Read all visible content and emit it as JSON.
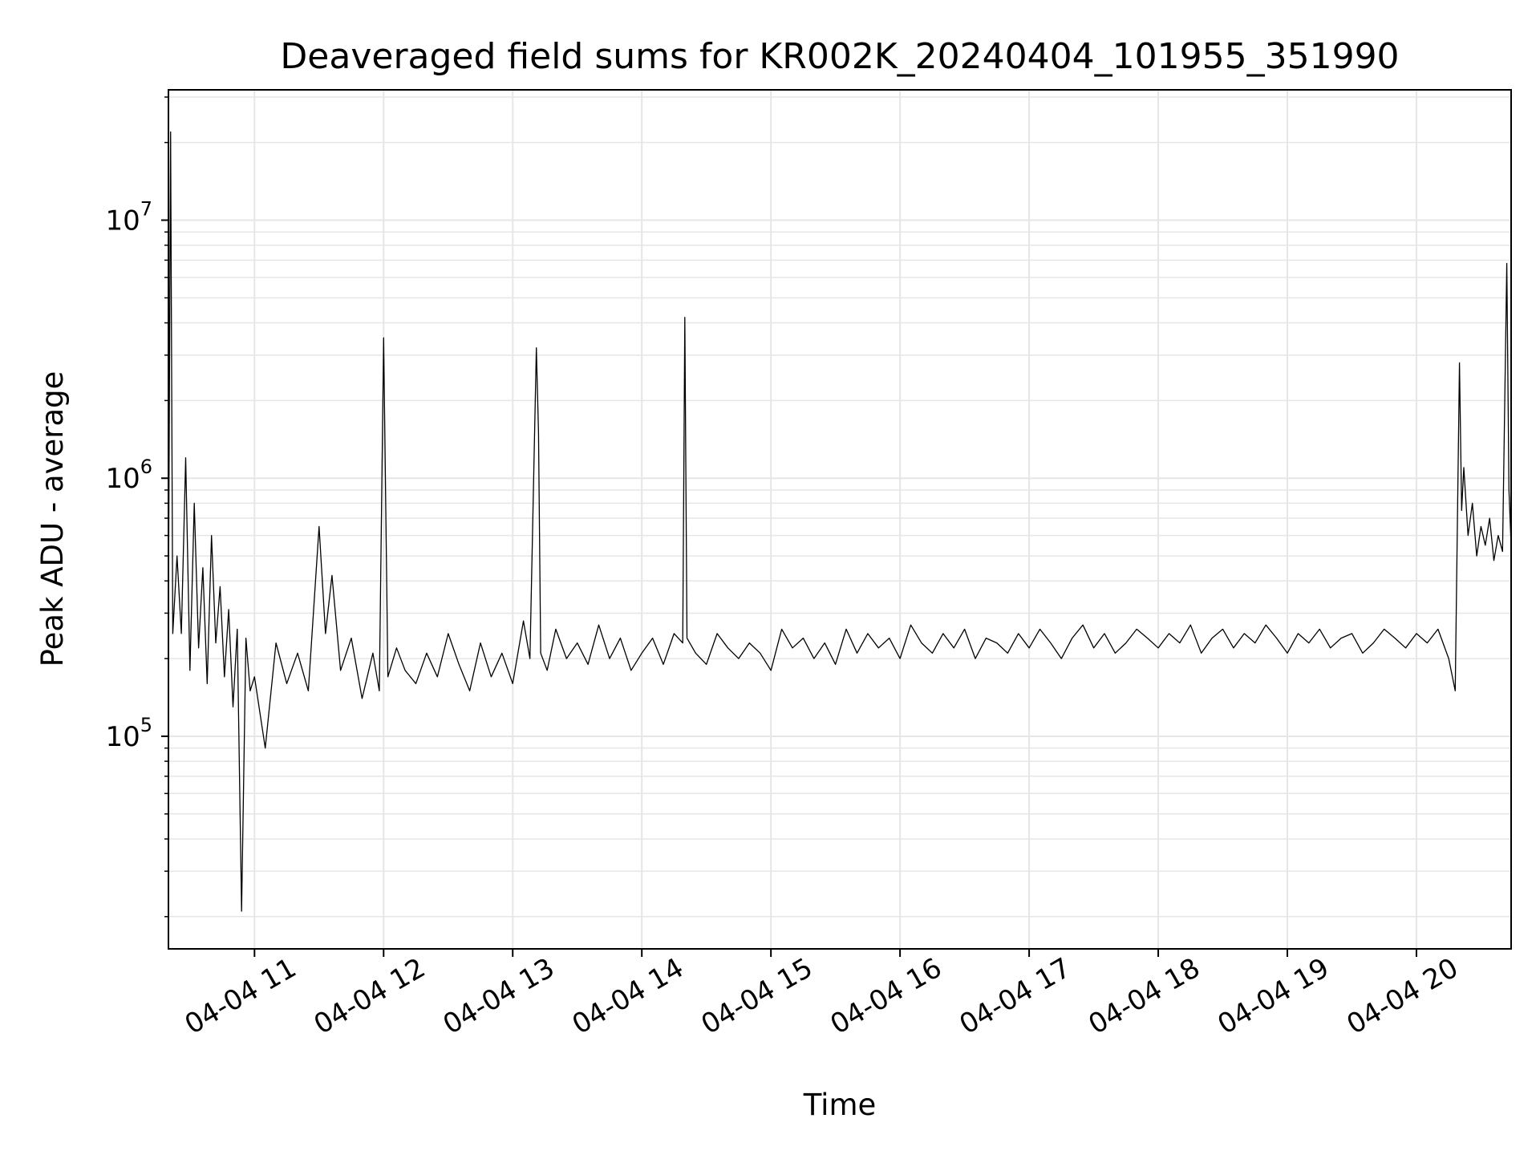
{
  "chart_data": {
    "type": "line",
    "title": "Deaveraged field sums for KR002K_20240404_101955_351990",
    "xlabel": "Time",
    "ylabel": "Peak ADU - average",
    "yscale": "log",
    "ylim": [
      15000,
      32000000
    ],
    "xlim": [
      "04-04 10:20",
      "04-04 20:44"
    ],
    "grid": true,
    "line_color": "#000000",
    "grid_color": "#e6e6e6",
    "x_ticks": [
      {
        "time": "04-04 11:00",
        "label": "04-04 11"
      },
      {
        "time": "04-04 12:00",
        "label": "04-04 12"
      },
      {
        "time": "04-04 13:00",
        "label": "04-04 13"
      },
      {
        "time": "04-04 14:00",
        "label": "04-04 14"
      },
      {
        "time": "04-04 15:00",
        "label": "04-04 15"
      },
      {
        "time": "04-04 16:00",
        "label": "04-04 16"
      },
      {
        "time": "04-04 17:00",
        "label": "04-04 17"
      },
      {
        "time": "04-04 18:00",
        "label": "04-04 18"
      },
      {
        "time": "04-04 19:00",
        "label": "04-04 19"
      },
      {
        "time": "04-04 20:00",
        "label": "04-04 20"
      }
    ],
    "y_ticks": [
      {
        "value": 100000,
        "base": "10",
        "exp": "5"
      },
      {
        "value": 1000000,
        "base": "10",
        "exp": "6"
      },
      {
        "value": 10000000,
        "base": "10",
        "exp": "7"
      }
    ],
    "series": [
      {
        "x": [
          "04-04 10:20",
          "04-04 10:21",
          "04-04 10:22",
          "04-04 10:24",
          "04-04 10:26",
          "04-04 10:28",
          "04-04 10:30",
          "04-04 10:32",
          "04-04 10:34",
          "04-04 10:36",
          "04-04 10:38",
          "04-04 10:40",
          "04-04 10:42",
          "04-04 10:44",
          "04-04 10:46",
          "04-04 10:48",
          "04-04 10:50",
          "04-04 10:52",
          "04-04 10:54",
          "04-04 10:56",
          "04-04 10:58",
          "04-04 11:00",
          "04-04 11:05",
          "04-04 11:10",
          "04-04 11:15",
          "04-04 11:20",
          "04-04 11:25",
          "04-04 11:30",
          "04-04 11:33",
          "04-04 11:36",
          "04-04 11:40",
          "04-04 11:45",
          "04-04 11:50",
          "04-04 11:55",
          "04-04 11:58",
          "04-04 12:00",
          "04-04 12:02",
          "04-04 12:06",
          "04-04 12:10",
          "04-04 12:15",
          "04-04 12:20",
          "04-04 12:25",
          "04-04 12:30",
          "04-04 12:35",
          "04-04 12:40",
          "04-04 12:45",
          "04-04 12:50",
          "04-04 12:55",
          "04-04 13:00",
          "04-04 13:05",
          "04-04 13:08",
          "04-04 13:11",
          "04-04 13:12",
          "04-04 13:13",
          "04-04 13:16",
          "04-04 13:20",
          "04-04 13:25",
          "04-04 13:30",
          "04-04 13:35",
          "04-04 13:40",
          "04-04 13:45",
          "04-04 13:50",
          "04-04 13:55",
          "04-04 14:00",
          "04-04 14:05",
          "04-04 14:10",
          "04-04 14:15",
          "04-04 14:19",
          "04-04 14:20",
          "04-04 14:21",
          "04-04 14:25",
          "04-04 14:30",
          "04-04 14:35",
          "04-04 14:40",
          "04-04 14:45",
          "04-04 14:50",
          "04-04 14:55",
          "04-04 15:00",
          "04-04 15:05",
          "04-04 15:10",
          "04-04 15:15",
          "04-04 15:20",
          "04-04 15:25",
          "04-04 15:30",
          "04-04 15:35",
          "04-04 15:40",
          "04-04 15:45",
          "04-04 15:50",
          "04-04 15:55",
          "04-04 16:00",
          "04-04 16:05",
          "04-04 16:10",
          "04-04 16:15",
          "04-04 16:20",
          "04-04 16:25",
          "04-04 16:30",
          "04-04 16:35",
          "04-04 16:40",
          "04-04 16:45",
          "04-04 16:50",
          "04-04 16:55",
          "04-04 17:00",
          "04-04 17:05",
          "04-04 17:10",
          "04-04 17:15",
          "04-04 17:20",
          "04-04 17:25",
          "04-04 17:30",
          "04-04 17:35",
          "04-04 17:40",
          "04-04 17:45",
          "04-04 17:50",
          "04-04 17:55",
          "04-04 18:00",
          "04-04 18:05",
          "04-04 18:10",
          "04-04 18:15",
          "04-04 18:20",
          "04-04 18:25",
          "04-04 18:30",
          "04-04 18:35",
          "04-04 18:40",
          "04-04 18:45",
          "04-04 18:50",
          "04-04 18:55",
          "04-04 19:00",
          "04-04 19:05",
          "04-04 19:10",
          "04-04 19:15",
          "04-04 19:20",
          "04-04 19:25",
          "04-04 19:30",
          "04-04 19:35",
          "04-04 19:40",
          "04-04 19:45",
          "04-04 19:50",
          "04-04 19:55",
          "04-04 20:00",
          "04-04 20:05",
          "04-04 20:10",
          "04-04 20:15",
          "04-04 20:18",
          "04-04 20:20",
          "04-04 20:21",
          "04-04 20:22",
          "04-04 20:24",
          "04-04 20:26",
          "04-04 20:28",
          "04-04 20:30",
          "04-04 20:32",
          "04-04 20:34",
          "04-04 20:36",
          "04-04 20:38",
          "04-04 20:40",
          "04-04 20:42",
          "04-04 20:43",
          "04-04 20:44"
        ],
        "y": [
          300000,
          22000000,
          250000,
          500000,
          250000,
          1200000,
          180000,
          800000,
          220000,
          450000,
          160000,
          600000,
          230000,
          380000,
          170000,
          310000,
          130000,
          260000,
          21000,
          240000,
          150000,
          170000,
          90000,
          230000,
          160000,
          210000,
          150000,
          650000,
          250000,
          420000,
          180000,
          240000,
          140000,
          210000,
          150000,
          3500000,
          170000,
          220000,
          180000,
          160000,
          210000,
          170000,
          250000,
          190000,
          150000,
          230000,
          170000,
          210000,
          160000,
          280000,
          200000,
          3200000,
          1500000,
          210000,
          180000,
          260000,
          200000,
          230000,
          190000,
          270000,
          200000,
          240000,
          180000,
          210000,
          240000,
          190000,
          250000,
          230000,
          4200000,
          240000,
          210000,
          190000,
          250000,
          220000,
          200000,
          230000,
          210000,
          180000,
          260000,
          220000,
          240000,
          200000,
          230000,
          190000,
          260000,
          210000,
          250000,
          220000,
          240000,
          200000,
          270000,
          230000,
          210000,
          250000,
          220000,
          260000,
          200000,
          240000,
          230000,
          210000,
          250000,
          220000,
          260000,
          230000,
          200000,
          240000,
          270000,
          220000,
          250000,
          210000,
          230000,
          260000,
          240000,
          220000,
          250000,
          230000,
          270000,
          210000,
          240000,
          260000,
          220000,
          250000,
          230000,
          270000,
          240000,
          210000,
          250000,
          230000,
          260000,
          220000,
          240000,
          250000,
          210000,
          230000,
          260000,
          240000,
          220000,
          250000,
          230000,
          260000,
          200000,
          150000,
          2800000,
          750000,
          1100000,
          600000,
          800000,
          500000,
          650000,
          550000,
          700000,
          480000,
          600000,
          520000,
          6800000,
          900000,
          550000
        ]
      }
    ]
  }
}
